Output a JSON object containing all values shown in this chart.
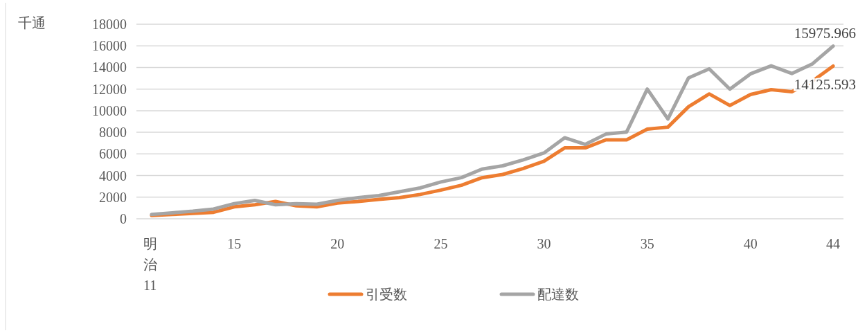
{
  "chart_data": {
    "type": "line",
    "ylabel": "千通",
    "categories": [
      "明治11",
      null,
      null,
      null,
      "15",
      null,
      null,
      null,
      null,
      "20",
      null,
      null,
      null,
      null,
      "25",
      null,
      null,
      null,
      null,
      "30",
      null,
      null,
      null,
      null,
      "35",
      null,
      null,
      null,
      null,
      "40",
      null,
      null,
      null,
      "44"
    ],
    "series": [
      {
        "name": "引受数",
        "color": "#ed7d31",
        "values": [
          300,
          400,
          500,
          600,
          1100,
          1300,
          1600,
          1200,
          1100,
          1450,
          1600,
          1800,
          1950,
          2250,
          2650,
          3100,
          3800,
          4100,
          4650,
          5330,
          6560,
          6560,
          7300,
          7300,
          8290,
          8480,
          10370,
          11550,
          10480,
          11500,
          11950,
          11760,
          12750,
          14125.593
        ],
        "value_labels": [
          null,
          null,
          null,
          null,
          null,
          null,
          null,
          null,
          null,
          null,
          null,
          null,
          null,
          null,
          null,
          null,
          null,
          null,
          null,
          null,
          null,
          null,
          null,
          null,
          null,
          null,
          null,
          null,
          null,
          null,
          null,
          null,
          null,
          "14125.593"
        ]
      },
      {
        "name": "配達数",
        "color": "#a5a5a5",
        "values": [
          400,
          550,
          700,
          900,
          1400,
          1700,
          1300,
          1400,
          1350,
          1700,
          1950,
          2150,
          2500,
          2850,
          3400,
          3800,
          4600,
          4900,
          5450,
          6090,
          7500,
          6880,
          7840,
          8030,
          12000,
          9230,
          13040,
          13870,
          12000,
          13410,
          14150,
          13440,
          14340,
          15975.966
        ],
        "value_labels": [
          null,
          null,
          null,
          null,
          null,
          null,
          null,
          null,
          null,
          null,
          null,
          null,
          null,
          null,
          null,
          null,
          null,
          null,
          null,
          null,
          null,
          null,
          null,
          null,
          null,
          null,
          null,
          null,
          null,
          null,
          null,
          null,
          null,
          "15975.966"
        ]
      }
    ],
    "ylim": [
      0,
      18000
    ],
    "yticks": [
      0,
      2000,
      4000,
      6000,
      8000,
      10000,
      12000,
      14000,
      16000,
      18000
    ],
    "grid": "y",
    "legend": "bottom",
    "line_style": "solid"
  }
}
